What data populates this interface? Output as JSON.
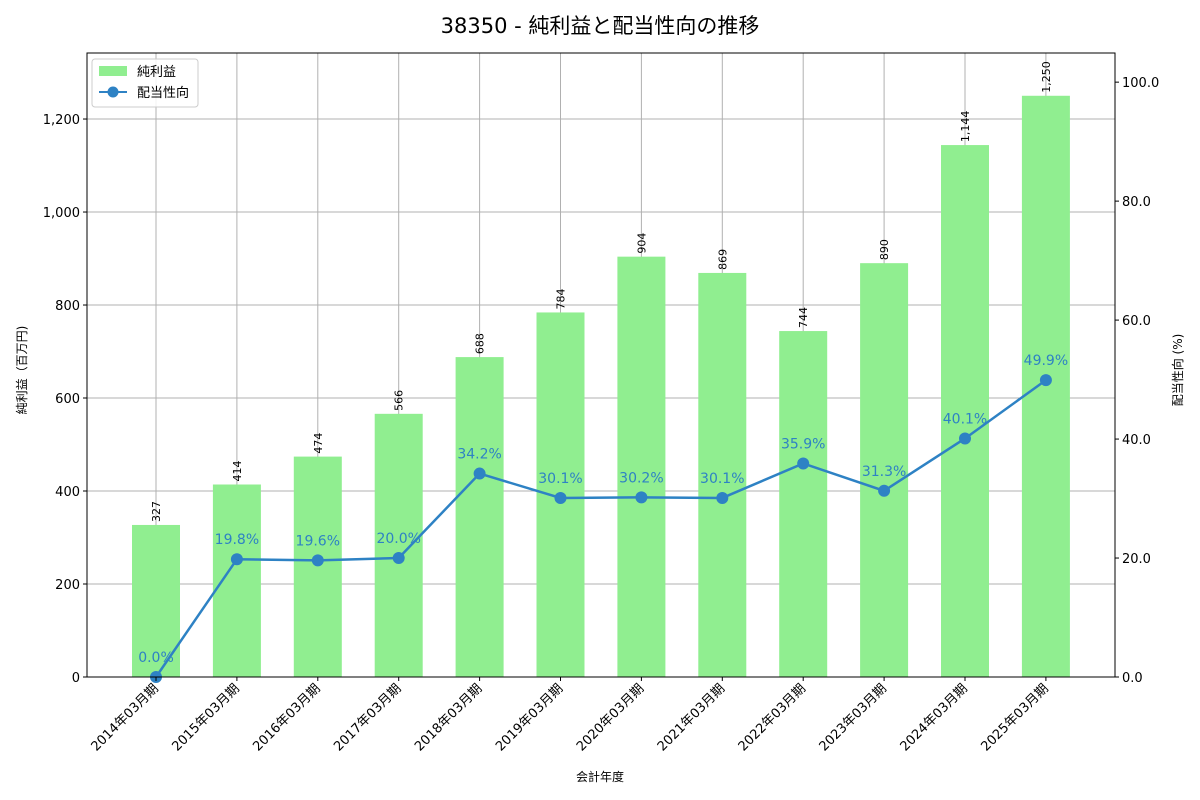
{
  "chart_data": {
    "type": "bar+line",
    "title": "38350 - 純利益と配当性向の推移",
    "xlabel": "会計年度",
    "ylabel_left": "純利益（百万円)",
    "ylabel_right": "配当性向 (%)",
    "categories": [
      "2014年03月期",
      "2015年03月期",
      "2016年03月期",
      "2017年03月期",
      "2018年03月期",
      "2019年03月期",
      "2020年03月期",
      "2021年03月期",
      "2022年03月期",
      "2023年03月期",
      "2024年03月期",
      "2025年03月期"
    ],
    "series": [
      {
        "name": "純利益",
        "type": "bar",
        "axis": "left",
        "color": "#90ee90",
        "values": [
          327,
          414,
          474,
          566,
          688,
          784,
          904,
          869,
          744,
          890,
          1144,
          1250
        ],
        "labels": [
          "327",
          "414",
          "474",
          "566",
          "688",
          "784",
          "904",
          "869",
          "744",
          "890",
          "1,144",
          "1,250"
        ]
      },
      {
        "name": "配当性向",
        "type": "line",
        "axis": "right",
        "color": "#2e82c4",
        "values": [
          0.0,
          19.8,
          19.6,
          20.0,
          34.2,
          30.1,
          30.2,
          30.1,
          35.9,
          31.3,
          40.1,
          49.9
        ],
        "labels": [
          "0.0%",
          "19.8%",
          "19.6%",
          "20.0%",
          "34.2%",
          "30.1%",
          "30.2%",
          "30.1%",
          "35.9%",
          "31.3%",
          "40.1%",
          "49.9%"
        ]
      }
    ],
    "ylim_left": [
      0,
      1342
    ],
    "ylim_right": [
      0,
      104.9
    ],
    "yticks_left": [
      0,
      200,
      400,
      600,
      800,
      1000,
      1200
    ],
    "yticks_left_labels": [
      "0",
      "200",
      "400",
      "600",
      "800",
      "1,000",
      "1,200"
    ],
    "yticks_right": [
      0,
      20,
      40,
      60,
      80,
      100
    ],
    "yticks_right_labels": [
      "0.0",
      "20.0",
      "40.0",
      "60.0",
      "80.0",
      "100.0"
    ],
    "grid": true,
    "legend_position": "upper left"
  }
}
